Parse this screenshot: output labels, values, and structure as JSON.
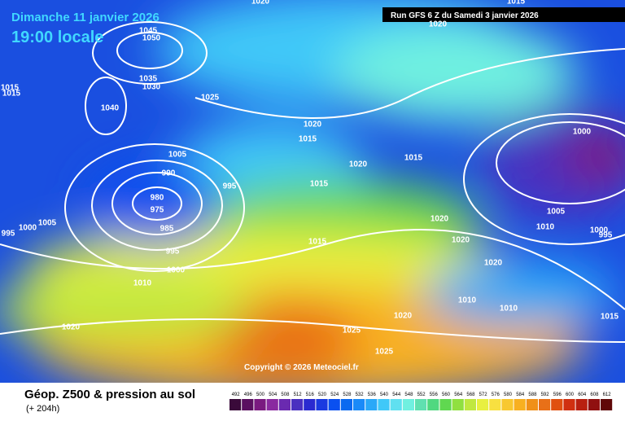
{
  "header": {
    "date": "Dimanche 11 janvier 2026",
    "time": "19:00 locale",
    "run": "Run GFS 6 Z du Samedi 3 janvier 2026"
  },
  "copyright": "Copyright © 2026 Meteociel.fr",
  "footer": {
    "title": "Géop. Z500 & pression au sol",
    "lead": "(+ 204h)"
  },
  "isobars": [
    1020,
    1045,
    1050,
    1015,
    1015,
    1035,
    1030,
    1040,
    1025,
    1020,
    1015,
    1005,
    990,
    995,
    980,
    975,
    985,
    1000,
    1005,
    995,
    1015,
    1020,
    1015,
    1020,
    1020,
    1015,
    995,
    1000,
    1010,
    1020,
    1010,
    1010,
    1020,
    1020,
    1025,
    1025,
    1000,
    1005,
    1010,
    1000,
    995,
    1015,
    1015,
    1020
  ],
  "legend": {
    "levels": [
      492,
      496,
      500,
      504,
      508,
      512,
      516,
      520,
      524,
      528,
      532,
      536,
      540,
      544,
      548,
      552,
      556,
      560,
      564,
      568,
      572,
      576,
      580,
      584,
      588,
      592,
      596,
      600,
      604,
      608,
      612
    ],
    "colors": [
      "#3a0a3a",
      "#5a1060",
      "#7a1a80",
      "#8a2aa0",
      "#6a2ab0",
      "#4a30c0",
      "#2a2ad0",
      "#1a3ae0",
      "#0a50f0",
      "#0a6af0",
      "#1a8af8",
      "#2aa8f8",
      "#40c8f8",
      "#60e0f0",
      "#70f0e0",
      "#60e0b0",
      "#50d880",
      "#60d850",
      "#90e040",
      "#c0e840",
      "#e8f040",
      "#f8e040",
      "#f8c830",
      "#f8b020",
      "#f09018",
      "#e87018",
      "#e05010",
      "#d03010",
      "#b82010",
      "#901010",
      "#600808"
    ]
  }
}
